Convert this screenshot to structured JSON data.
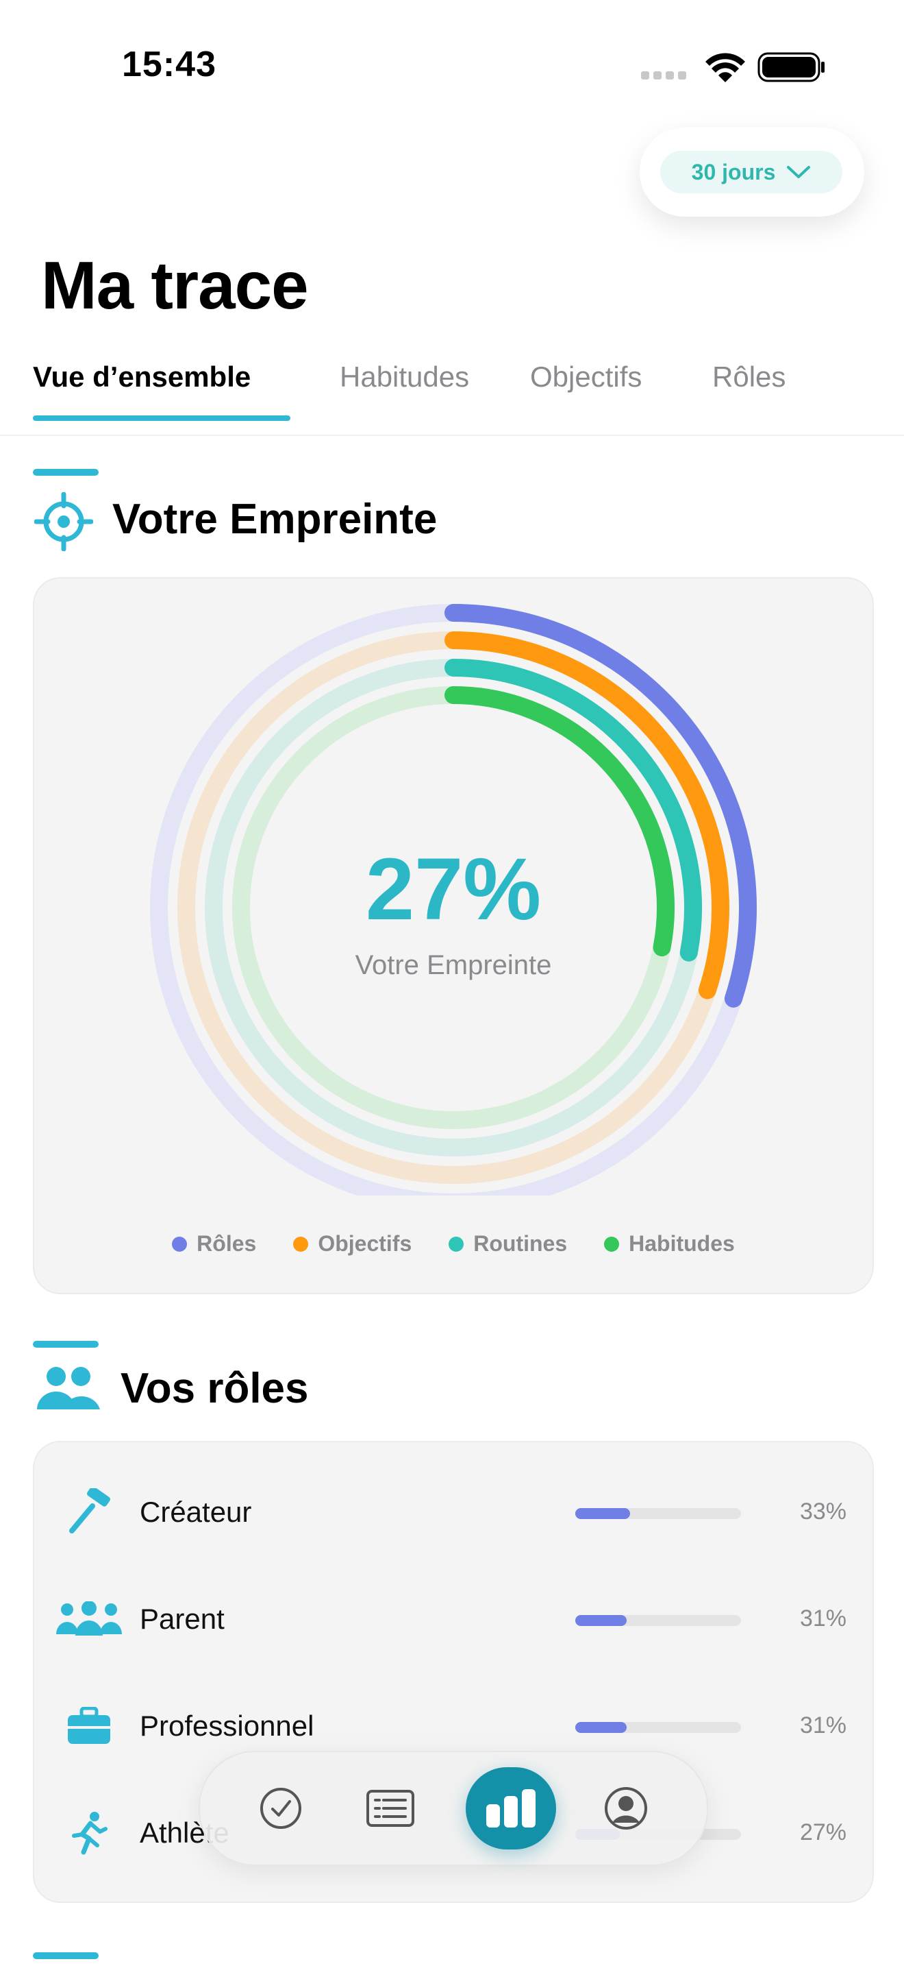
{
  "status_bar": {
    "time": "15:43"
  },
  "period": {
    "label": "30 jours"
  },
  "page": {
    "title": "Ma trace"
  },
  "tabs": [
    {
      "label": "Vue d’ensemble",
      "active": true
    },
    {
      "label": "Habitudes",
      "active": false
    },
    {
      "label": "Objectifs",
      "active": false
    },
    {
      "label": "Rôles",
      "active": false
    }
  ],
  "footprint": {
    "title": "Votre Empreinte",
    "icon": "target-icon",
    "percent_label": "27%",
    "caption": "Votre Empreinte"
  },
  "chart_data": {
    "type": "radial-bar",
    "center_value": 27,
    "series": [
      {
        "name": "Rôles",
        "value": 30,
        "color": "#6f7fe6",
        "track_color": "#e3e5f6"
      },
      {
        "name": "Objectifs",
        "value": 30,
        "color": "#ff9a10",
        "track_color": "#f5e4cf"
      },
      {
        "name": "Routines",
        "value": 28,
        "color": "#2ec4b6",
        "track_color": "#d6ece9"
      },
      {
        "name": "Habitudes",
        "value": 28,
        "color": "#34c759",
        "track_color": "#d7eedb"
      }
    ],
    "legend_position": "bottom"
  },
  "roles_section": {
    "title": "Vos rôles",
    "icon": "people-icon",
    "items": [
      {
        "label": "Créateur",
        "percent_label": "33%",
        "value": 0.33,
        "icon": "hammer-icon"
      },
      {
        "label": "Parent",
        "percent_label": "31%",
        "value": 0.31,
        "icon": "family-icon"
      },
      {
        "label": "Professionnel",
        "percent_label": "31%",
        "value": 0.31,
        "icon": "briefcase-icon"
      },
      {
        "label": "Athlète",
        "percent_label": "27%",
        "value": 0.27,
        "icon": "runner-icon"
      }
    ]
  },
  "bottom_nav": [
    {
      "icon": "checkmark-circle-icon",
      "active": false
    },
    {
      "icon": "list-icon",
      "active": false
    },
    {
      "icon": "bar-chart-icon",
      "active": true
    },
    {
      "icon": "profile-icon",
      "active": false
    }
  ],
  "colors": {
    "accent": "#2fb8d6",
    "teal": "#1490a8",
    "card_bg": "#f4f4f4"
  }
}
